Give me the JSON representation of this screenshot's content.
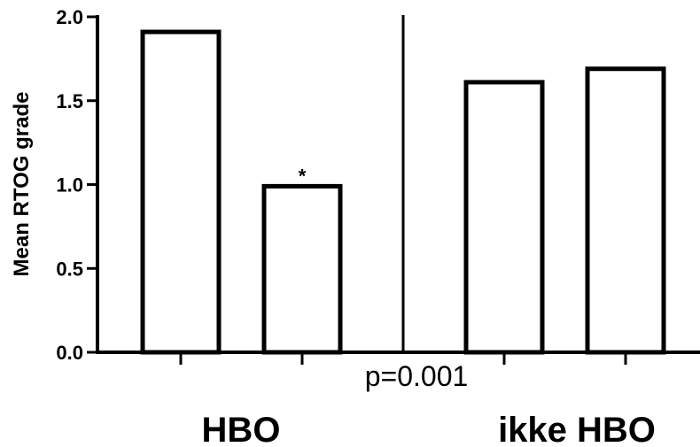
{
  "chart_data": {
    "type": "bar",
    "ylabel": "Mean RTOG grade",
    "ylim": [
      0,
      2.0
    ],
    "yticks": [
      0.0,
      0.5,
      1.0,
      1.5,
      2.0
    ],
    "ytick_labels": [
      "0.0",
      "0.5",
      "1.0",
      "1.5",
      "2.0"
    ],
    "values": [
      1.91,
      0.99,
      1.61,
      1.69
    ],
    "bar_fill": "#ffffff",
    "bar_stroke": "#000000",
    "groups": [
      {
        "label": "HBO",
        "bar_indices": [
          0,
          1
        ]
      },
      {
        "label": "ikke HBO",
        "bar_indices": [
          2,
          3
        ]
      }
    ],
    "annotations": [
      {
        "text": "*",
        "bar_index": 1
      },
      {
        "text": "p=0.001"
      }
    ],
    "grid": false
  }
}
